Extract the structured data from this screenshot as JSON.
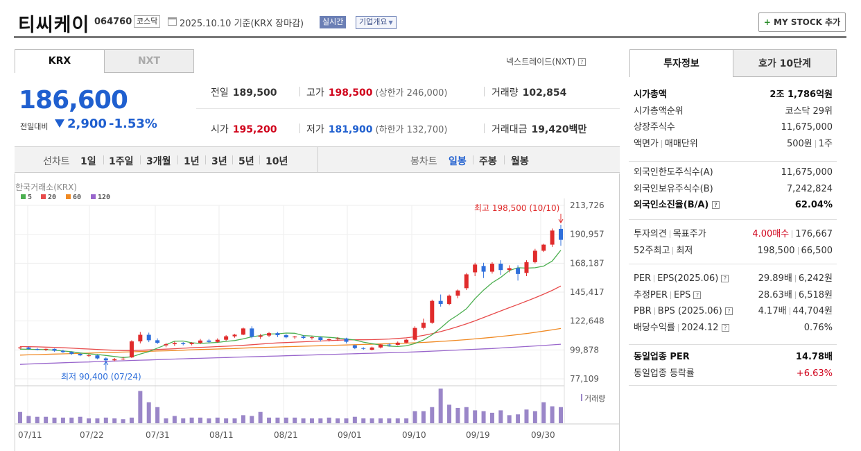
{
  "header": {
    "name": "티씨케이",
    "code": "064760",
    "market": "코스닥",
    "date_text": "2025.10.10 기준(KRX 장마감)",
    "realtime": "실시간",
    "company_info": "기업개요",
    "mystock": "MY STOCK 추가"
  },
  "tabs": {
    "krx": "KRX",
    "nxt": "NXT",
    "nxt_link": "넥스트레이드(NXT)"
  },
  "price": {
    "current": "186,600",
    "change_label": "전일대비",
    "change_amount": "2,900",
    "change_pct": "-1.53%"
  },
  "stats": {
    "prev_label": "전일",
    "prev": "189,500",
    "high_label": "고가",
    "high": "198,500",
    "upper_limit": "(상한가 246,000)",
    "volume_label": "거래량",
    "volume": "102,854",
    "open_label": "시가",
    "open": "195,200",
    "low_label": "저가",
    "low": "181,900",
    "lower_limit": "(하한가 132,700)",
    "value_label": "거래대금",
    "value": "19,420",
    "value_unit": "백만"
  },
  "period_tabs": {
    "label": "선차트",
    "items": [
      "1일",
      "1주일",
      "3개월",
      "1년",
      "3년",
      "5년",
      "10년"
    ],
    "candle_label": "봉차트",
    "candle_items": [
      "일봉",
      "주봉",
      "월봉"
    ],
    "active_candle": "일봉"
  },
  "chart_data": {
    "type": "candlestick",
    "title": "한국거래소(KRX)",
    "legend": [
      {
        "name": "5",
        "color": "#4caf50"
      },
      {
        "name": "20",
        "color": "#e84c4c"
      },
      {
        "name": "60",
        "color": "#f08a24"
      },
      {
        "name": "120",
        "color": "#9966cc"
      }
    ],
    "yticks": [
      "213,726",
      "190,957",
      "168,187",
      "145,417",
      "122,648",
      "99,878",
      "77,109"
    ],
    "ylim": [
      77109,
      213726
    ],
    "xticks": [
      "07/11",
      "07/22",
      "07/31",
      "08/11",
      "08/21",
      "09/01",
      "09/10",
      "09/19",
      "09/30"
    ],
    "high_annotation": "최고 198,500 (10/10)",
    "low_annotation": "최저 90,400 (07/24)",
    "volume_label": "거래량",
    "candles": [
      [
        101500,
        102500,
        100500,
        101800
      ],
      [
        101800,
        102500,
        100000,
        100600
      ],
      [
        100600,
        101500,
        99500,
        100000
      ],
      [
        100000,
        101000,
        99000,
        100700
      ],
      [
        100700,
        101000,
        98500,
        99200
      ],
      [
        99200,
        100000,
        97500,
        98200
      ],
      [
        98200,
        98800,
        96000,
        96800
      ],
      [
        96800,
        97500,
        95000,
        95600
      ],
      [
        95600,
        96500,
        94500,
        95600
      ],
      [
        95600,
        96000,
        92500,
        93200
      ],
      [
        93200,
        94000,
        90400,
        91700
      ],
      [
        91700,
        93500,
        91000,
        92600
      ],
      [
        92600,
        94500,
        91800,
        93000
      ],
      [
        94000,
        107500,
        93500,
        106600
      ],
      [
        106600,
        114000,
        105000,
        111800
      ],
      [
        111800,
        113500,
        106000,
        107500
      ],
      [
        107500,
        109000,
        104500,
        105500
      ],
      [
        103500,
        105500,
        102000,
        104400
      ],
      [
        104400,
        106500,
        103000,
        105300
      ],
      [
        105300,
        106000,
        103500,
        104500
      ],
      [
        104500,
        106000,
        103500,
        105500
      ],
      [
        105500,
        108500,
        104500,
        107300
      ],
      [
        107300,
        108500,
        105000,
        106200
      ],
      [
        106200,
        109000,
        105500,
        107900
      ],
      [
        107900,
        111500,
        107000,
        110600
      ],
      [
        110600,
        112500,
        109500,
        111900
      ],
      [
        111900,
        117500,
        111500,
        116800
      ],
      [
        116800,
        118500,
        109000,
        110200
      ],
      [
        110200,
        112500,
        108500,
        111200
      ],
      [
        111200,
        114000,
        110000,
        113100
      ],
      [
        113100,
        114000,
        110000,
        111500
      ],
      [
        111500,
        112500,
        109000,
        109800
      ],
      [
        109800,
        111000,
        108500,
        110400
      ],
      [
        110400,
        111500,
        108500,
        109300
      ],
      [
        109300,
        110500,
        108000,
        109800
      ],
      [
        109800,
        110500,
        106500,
        107700
      ],
      [
        107700,
        109000,
        106500,
        108300
      ],
      [
        108300,
        110000,
        107000,
        108900
      ],
      [
        108900,
        109500,
        105000,
        106300
      ],
      [
        103500,
        104000,
        100500,
        101300
      ],
      [
        101300,
        102000,
        100000,
        101100
      ],
      [
        100000,
        102500,
        99500,
        101800
      ],
      [
        101800,
        104500,
        101000,
        104100
      ],
      [
        104100,
        105000,
        102500,
        103900
      ],
      [
        103900,
        106500,
        103500,
        105600
      ],
      [
        105600,
        108500,
        105000,
        107900
      ],
      [
        107900,
        118500,
        107000,
        117200
      ],
      [
        117200,
        124500,
        116000,
        121300
      ],
      [
        121300,
        139500,
        120500,
        138500
      ],
      [
        138500,
        143500,
        134000,
        136100
      ],
      [
        136100,
        143500,
        135000,
        142600
      ],
      [
        142600,
        147500,
        140500,
        146700
      ],
      [
        148500,
        160500,
        147000,
        159400
      ],
      [
        161000,
        168500,
        158000,
        167100
      ],
      [
        166000,
        168500,
        156500,
        161500
      ],
      [
        161500,
        169000,
        160000,
        167800
      ],
      [
        167800,
        170500,
        159000,
        162800
      ],
      [
        162800,
        166500,
        161000,
        164300
      ],
      [
        164300,
        166500,
        154500,
        159700
      ],
      [
        160500,
        170500,
        158000,
        169000
      ],
      [
        169000,
        179500,
        168000,
        178000
      ],
      [
        178000,
        183500,
        177000,
        182800
      ],
      [
        182800,
        195500,
        181000,
        193900
      ],
      [
        195200,
        198500,
        181900,
        186600
      ]
    ],
    "ma5": [
      100500,
      100400,
      100300,
      100100,
      99700,
      99000,
      98500,
      97500,
      96800,
      96300,
      95500,
      94700,
      93900,
      94500,
      96600,
      98600,
      101300,
      104000,
      106800,
      106900,
      105500,
      105000,
      105400,
      105800,
      106600,
      107300,
      108600,
      110200,
      111200,
      112400,
      112600,
      113200,
      113000,
      111200,
      110800,
      110300,
      109800,
      109300,
      108400,
      107700,
      106000,
      104800,
      103800,
      102900,
      102600,
      103100,
      104900,
      107700,
      111800,
      117100,
      123000,
      127400,
      132300,
      140300,
      147000,
      152800,
      157000,
      162400,
      164600,
      164300,
      164600,
      165900,
      169900,
      178400
    ],
    "ma20": [
      102500,
      102400,
      102300,
      102100,
      101900,
      101600,
      101300,
      100900,
      100600,
      100300,
      99900,
      99600,
      99400,
      99400,
      99600,
      99900,
      100200,
      100500,
      100800,
      101200,
      101600,
      101900,
      102200,
      102500,
      102800,
      103100,
      103500,
      104000,
      104500,
      105000,
      105400,
      105700,
      106000,
      106300,
      106600,
      106900,
      107200,
      107500,
      107800,
      107900,
      107900,
      108000,
      108200,
      108500,
      108900,
      109400,
      110200,
      111300,
      112700,
      114300,
      116200,
      118200,
      120400,
      122800,
      125400,
      128000,
      130600,
      133200,
      135700,
      138300,
      141000,
      143800,
      146800,
      150200
    ],
    "ma60": [
      95800,
      96000,
      96200,
      96400,
      96600,
      96800,
      97000,
      97200,
      97400,
      97600,
      97800,
      98000,
      98200,
      98400,
      98600,
      98800,
      99000,
      99200,
      99400,
      99700,
      100000,
      100200,
      100400,
      100600,
      100800,
      101000,
      101300,
      101600,
      101800,
      102000,
      102200,
      102400,
      102600,
      102800,
      103000,
      103200,
      103400,
      103600,
      103800,
      104000,
      104200,
      104400,
      104600,
      104800,
      105000,
      105200,
      105500,
      105800,
      106200,
      106600,
      107000,
      107500,
      108000,
      108600,
      109200,
      109800,
      110500,
      111200,
      112000,
      112800,
      113700,
      114700,
      115700,
      116800
    ],
    "ma120": [
      88500,
      88800,
      89000,
      89300,
      89500,
      89800,
      90000,
      90200,
      90400,
      90700,
      90900,
      91100,
      91300,
      91600,
      91800,
      92000,
      92200,
      92500,
      92700,
      92900,
      93100,
      93300,
      93500,
      93700,
      93900,
      94100,
      94300,
      94500,
      94700,
      94900,
      95100,
      95300,
      95500,
      95700,
      95900,
      96100,
      96300,
      96500,
      96700,
      96900,
      97100,
      97300,
      97500,
      97700,
      97900,
      98100,
      98300,
      98600,
      98900,
      99200,
      99500,
      99800,
      100100,
      100400,
      100700,
      101000,
      101400,
      101800,
      102200,
      102600,
      103000,
      103400,
      103900,
      104400
    ],
    "volume": [
      14,
      9,
      8,
      8,
      7,
      7,
      7,
      8,
      6,
      6,
      7,
      6,
      5,
      7,
      40,
      26,
      20,
      6,
      9,
      6,
      7,
      7,
      6,
      7,
      6,
      6,
      10,
      9,
      14,
      7,
      7,
      7,
      7,
      6,
      6,
      6,
      7,
      6,
      6,
      8,
      6,
      6,
      6,
      6,
      6,
      6,
      15,
      15,
      20,
      43,
      23,
      19,
      20,
      16,
      15,
      13,
      16,
      10,
      11,
      17,
      15,
      26,
      21,
      20
    ]
  },
  "right_panel": {
    "tab_info": "투자정보",
    "tab_quote": "호가 10단계",
    "rows1": [
      {
        "k": "시가총액",
        "v": "2조 1,786억원",
        "bold": true
      },
      {
        "k": "시가총액순위",
        "v": "코스닥 29위"
      },
      {
        "k": "상장주식수",
        "v": "11,675,000"
      },
      {
        "k": "액면가",
        "k2": "매매단위",
        "v": "500원",
        "v2": "1주"
      }
    ],
    "rows2": [
      {
        "k": "외국인한도주식수(A)",
        "v": "11,675,000"
      },
      {
        "k": "외국인보유주식수(B)",
        "v": "7,242,824"
      },
      {
        "k": "외국인소진율(B/A)",
        "v": "62.04%",
        "bold": true
      }
    ],
    "rows3": [
      {
        "k": "투자의견",
        "k2": "목표주가",
        "v": "4.00매수",
        "v2": "176,667"
      },
      {
        "k": "52주최고",
        "k2": "최저",
        "v": "198,500",
        "v2": "66,500"
      }
    ],
    "rows4": [
      {
        "k": "PER",
        "k2": "EPS(2025.06)",
        "v": "29.89배",
        "v2": "6,242원"
      },
      {
        "k": "추정PER",
        "k2": "EPS",
        "v": "28.63배",
        "v2": "6,518원"
      },
      {
        "k": "PBR",
        "k2": "BPS (2025.06)",
        "v": "4.17배",
        "v2": "44,704원"
      },
      {
        "k": "배당수익률",
        "k2": "2024.12",
        "v": "0.76%"
      }
    ],
    "rows5": [
      {
        "k": "동일업종 PER",
        "v": "14.78배",
        "bold": true
      },
      {
        "k": "동일업종 등락률",
        "v": "+6.63%"
      }
    ]
  }
}
